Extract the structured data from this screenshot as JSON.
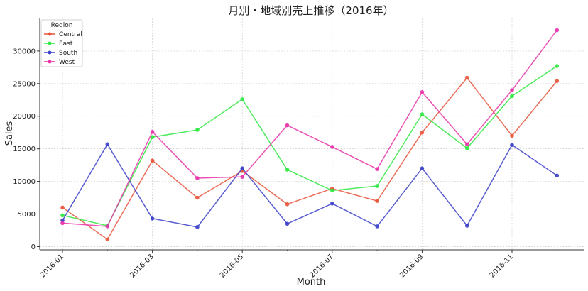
{
  "chart_data": {
    "type": "line",
    "title": "月別・地域別売上推移（2016年）",
    "xlabel": "Month",
    "ylabel": "Sales",
    "x": [
      "2016-01",
      "2016-02",
      "2016-03",
      "2016-04",
      "2016-05",
      "2016-06",
      "2016-07",
      "2016-08",
      "2016-09",
      "2016-10",
      "2016-11",
      "2016-12"
    ],
    "xticks": [
      "2016-01",
      "2016-03",
      "2016-05",
      "2016-07",
      "2016-09",
      "2016-11"
    ],
    "yticks": [
      0,
      5000,
      10000,
      15000,
      20000,
      25000,
      30000
    ],
    "ylim": [
      -500,
      35000
    ],
    "grid": true,
    "legend": {
      "title": "Region",
      "placement": "top-left"
    },
    "series": [
      {
        "name": "Central",
        "color": "#e8543a",
        "values": [
          6000,
          1100,
          13200,
          7500,
          11600,
          6500,
          8900,
          7000,
          17500,
          25900,
          17000,
          25400
        ]
      },
      {
        "name": "East",
        "color": "#2ee840",
        "values": [
          4800,
          3200,
          16800,
          17900,
          22600,
          11800,
          8600,
          9300,
          20300,
          15100,
          23100,
          27700
        ]
      },
      {
        "name": "South",
        "color": "#3b40c8",
        "values": [
          4000,
          15700,
          4300,
          3000,
          12000,
          3500,
          6600,
          3100,
          12000,
          3200,
          15600,
          10900
        ]
      },
      {
        "name": "West",
        "color": "#e832a8",
        "values": [
          3600,
          3100,
          17600,
          10500,
          10700,
          18600,
          15300,
          11900,
          23700,
          15700,
          24000,
          33200
        ]
      }
    ]
  }
}
